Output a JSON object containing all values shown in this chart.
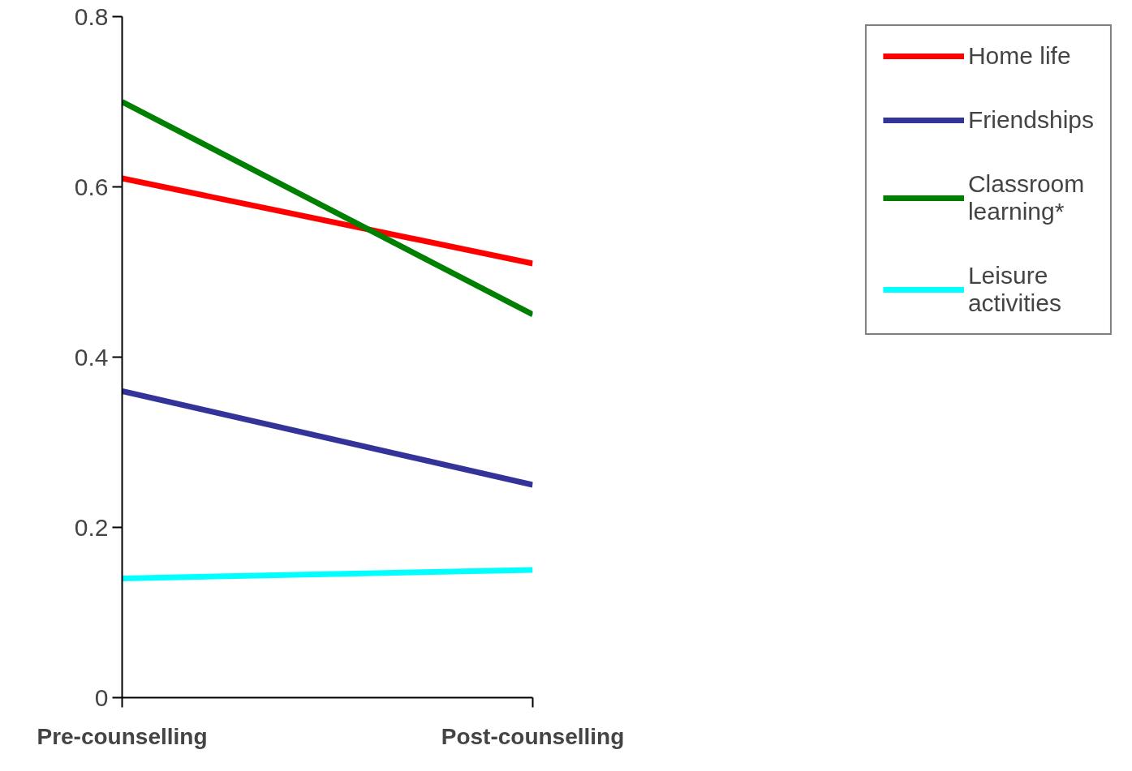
{
  "chart_data": {
    "type": "line",
    "categories": [
      "Pre-counselling",
      "Post-counselling"
    ],
    "series": [
      {
        "name": "Home life",
        "color": "#ff0000",
        "values": [
          0.61,
          0.51
        ]
      },
      {
        "name": "Friendships",
        "color": "#333399",
        "values": [
          0.36,
          0.25
        ]
      },
      {
        "name": "Classroom learning*",
        "color": "#008000",
        "values": [
          0.7,
          0.45
        ]
      },
      {
        "name": "Leisure activities",
        "color": "#00ffff",
        "values": [
          0.14,
          0.15
        ]
      }
    ],
    "ylim": [
      0,
      0.8
    ],
    "yticks": [
      0,
      0.2,
      0.4,
      0.6,
      0.8
    ],
    "grid": false,
    "legend": "right",
    "marker": "none",
    "line_style": "solid"
  }
}
